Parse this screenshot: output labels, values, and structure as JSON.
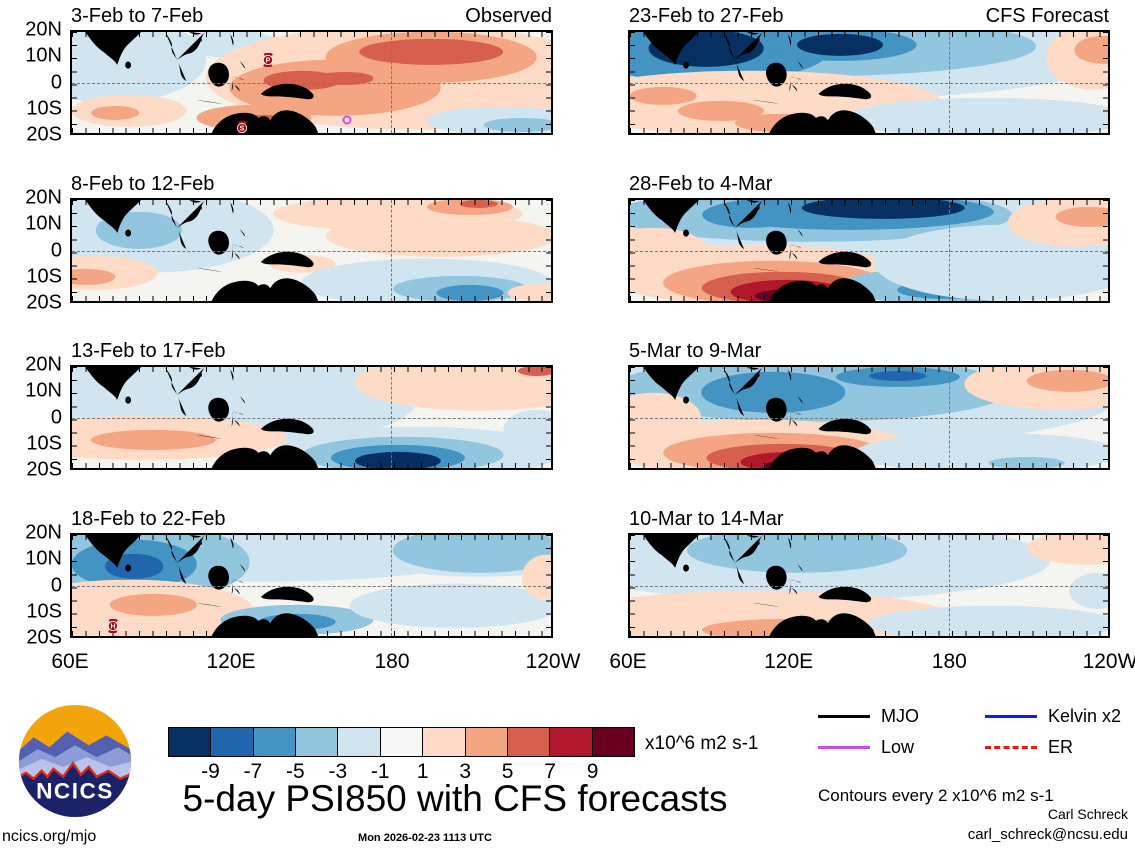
{
  "figure": {
    "title": "5-day PSI850 with CFS forecasts",
    "timestamp": "Mon 2026-02-23 1113 UTC",
    "site": "ncics.org/mjo",
    "credit_name": "Carl Schreck",
    "credit_email": "carl_schreck@ncsu.edu",
    "contours_note": "Contours every 2 x10^6 m2 s-1",
    "logo_text": "NCICS"
  },
  "chart_data": {
    "type": "heatmap",
    "title": "5-day PSI850 with CFS forecasts",
    "variable": "PSI850 anomaly",
    "units": "x10^6 m2 s-1",
    "columns": [
      "Observed",
      "CFS Forecast"
    ],
    "x_ticks": [
      "60E",
      "120E",
      "180",
      "120W"
    ],
    "y_ticks": [
      "20N",
      "10N",
      "0",
      "10S",
      "20S"
    ],
    "grid": {
      "equator_dashed": true,
      "dateline_dashed": true
    },
    "colorbar": {
      "tick_labels": [
        "-9",
        "-7",
        "-5",
        "-3",
        "-1",
        "1",
        "3",
        "5",
        "7",
        "9"
      ],
      "colors": [
        "#053061",
        "#2166ac",
        "#4393c3",
        "#92c5de",
        "#d1e5f0",
        "#f7f7f7",
        "#fddbc7",
        "#f4a582",
        "#d6604d",
        "#b2182b",
        "#67001f"
      ],
      "base_color": "#f4f4f1",
      "label": "x10^6 m2 s-1"
    },
    "legend": [
      {
        "label": "MJO",
        "color": "#000000",
        "dashed": false
      },
      {
        "label": "Kelvin x2",
        "color": "#0a1ef0",
        "dashed": false
      },
      {
        "label": "Low",
        "color": "#c44ef5",
        "dashed": false
      },
      {
        "label": "ER",
        "color": "#f51414",
        "dashed": true
      }
    ],
    "blob_format": "[x_pct, y_pct, rx_pct, ry_pct, colorbar_color_index]",
    "panels": [
      {
        "title": "3-Feb to 7-Feb",
        "corner": "Observed",
        "col": 0,
        "row": 0,
        "blobs": [
          [
            8,
            28,
            20,
            42,
            4
          ],
          [
            33,
            12,
            10,
            14,
            4
          ],
          [
            70,
            45,
            42,
            52,
            6
          ],
          [
            12,
            78,
            12,
            16,
            6
          ],
          [
            9,
            80,
            5,
            7,
            7
          ],
          [
            55,
            55,
            22,
            28,
            7
          ],
          [
            75,
            25,
            22,
            25,
            7
          ],
          [
            75,
            20,
            15,
            13,
            8
          ],
          [
            48,
            48,
            8,
            9,
            8
          ],
          [
            57,
            46,
            6,
            6,
            8
          ],
          [
            38,
            85,
            12,
            13,
            7
          ],
          [
            40,
            89,
            6,
            7,
            8
          ],
          [
            90,
            88,
            16,
            14,
            4
          ],
          [
            94,
            92,
            8,
            7,
            3
          ]
        ],
        "markers": [
          {
            "type": "storm",
            "label": "P",
            "x_pct": 41,
            "y_pct": 28
          },
          {
            "type": "storm",
            "label": "S",
            "x_pct": 35.5,
            "y_pct": 95
          },
          {
            "type": "low",
            "label": "",
            "x_pct": 57.5,
            "y_pct": 87
          }
        ]
      },
      {
        "title": "23-Feb to 27-Feb",
        "corner": "CFS Forecast",
        "col": 1,
        "row": 0,
        "blobs": [
          [
            40,
            22,
            62,
            45,
            4
          ],
          [
            35,
            14,
            50,
            30,
            3
          ],
          [
            16,
            16,
            26,
            34,
            2
          ],
          [
            16,
            16,
            12,
            18,
            0
          ],
          [
            44,
            13,
            16,
            16,
            2
          ],
          [
            44,
            13,
            9,
            11,
            0
          ],
          [
            25,
            70,
            40,
            32,
            6
          ],
          [
            7,
            63,
            7,
            9,
            7
          ],
          [
            19,
            78,
            9,
            10,
            7
          ],
          [
            31,
            90,
            9,
            9,
            7
          ],
          [
            63,
            90,
            12,
            9,
            3
          ],
          [
            75,
            85,
            30,
            20,
            4
          ],
          [
            97,
            25,
            10,
            32,
            6
          ],
          [
            99,
            18,
            6,
            14,
            7
          ]
        ],
        "markers": []
      },
      {
        "title": "8-Feb to 12-Feb",
        "corner": "",
        "col": 0,
        "row": 1,
        "blobs": [
          [
            16,
            30,
            26,
            42,
            4
          ],
          [
            14,
            30,
            9,
            18,
            3
          ],
          [
            5,
            72,
            13,
            17,
            6
          ],
          [
            3,
            76,
            6,
            8,
            7
          ],
          [
            68,
            14,
            26,
            18,
            6
          ],
          [
            83,
            7,
            9,
            8,
            7
          ],
          [
            85,
            4,
            4,
            4,
            8
          ],
          [
            77,
            36,
            24,
            20,
            6
          ],
          [
            48,
            63,
            7,
            9,
            6
          ],
          [
            74,
            82,
            26,
            24,
            4
          ],
          [
            81,
            88,
            14,
            13,
            3
          ],
          [
            83,
            92,
            7,
            8,
            2
          ],
          [
            98,
            92,
            7,
            9,
            6
          ]
        ],
        "markers": []
      },
      {
        "title": "28-Feb to 4-Mar",
        "corner": "",
        "col": 1,
        "row": 1,
        "blobs": [
          [
            42,
            25,
            60,
            45,
            4
          ],
          [
            38,
            15,
            42,
            26,
            3
          ],
          [
            46,
            12,
            30,
            18,
            2
          ],
          [
            53,
            8,
            17,
            11,
            0
          ],
          [
            25,
            15,
            10,
            13,
            2
          ],
          [
            5,
            55,
            12,
            28,
            6
          ],
          [
            26,
            74,
            32,
            30,
            6
          ],
          [
            30,
            82,
            23,
            22,
            7
          ],
          [
            32,
            87,
            17,
            16,
            8
          ],
          [
            33,
            91,
            12,
            12,
            9
          ],
          [
            34,
            95,
            8,
            7,
            10
          ],
          [
            64,
            85,
            20,
            18,
            3
          ],
          [
            66,
            89,
            10,
            9,
            2
          ],
          [
            79,
            62,
            28,
            38,
            4
          ],
          [
            93,
            22,
            14,
            24,
            6
          ],
          [
            96,
            17,
            7,
            10,
            7
          ]
        ],
        "markers": []
      },
      {
        "title": "13-Feb to 17-Feb",
        "corner": "",
        "col": 0,
        "row": 2,
        "blobs": [
          [
            12,
            22,
            22,
            34,
            4
          ],
          [
            19,
            41,
            4,
            5,
            2
          ],
          [
            42,
            32,
            30,
            42,
            4
          ],
          [
            15,
            70,
            30,
            22,
            6
          ],
          [
            17,
            72,
            13,
            10,
            7
          ],
          [
            46,
            96,
            10,
            9,
            7
          ],
          [
            48,
            98,
            5,
            5,
            8
          ],
          [
            85,
            15,
            26,
            28,
            6
          ],
          [
            97,
            4,
            4,
            5,
            8
          ],
          [
            72,
            85,
            30,
            26,
            4
          ],
          [
            69,
            87,
            21,
            18,
            3
          ],
          [
            68,
            90,
            14,
            13,
            2
          ],
          [
            68,
            93,
            9,
            9,
            0
          ],
          [
            97,
            62,
            7,
            20,
            4
          ]
        ],
        "markers": []
      },
      {
        "title": "5-Mar to 9-Mar",
        "corner": "",
        "col": 1,
        "row": 2,
        "blobs": [
          [
            42,
            30,
            60,
            48,
            4
          ],
          [
            38,
            22,
            42,
            32,
            3
          ],
          [
            30,
            25,
            15,
            20,
            2
          ],
          [
            56,
            10,
            13,
            10,
            2
          ],
          [
            56,
            9,
            6,
            5,
            1
          ],
          [
            5,
            50,
            10,
            25,
            6
          ],
          [
            27,
            80,
            32,
            28,
            6
          ],
          [
            30,
            85,
            23,
            20,
            7
          ],
          [
            32,
            90,
            16,
            14,
            8
          ],
          [
            34,
            94,
            11,
            10,
            9
          ],
          [
            35,
            98,
            7,
            6,
            10
          ],
          [
            75,
            85,
            28,
            20,
            4
          ],
          [
            83,
            95,
            8,
            6,
            3
          ],
          [
            90,
            17,
            20,
            25,
            6
          ],
          [
            92,
            14,
            9,
            11,
            7
          ]
        ],
        "markers": []
      },
      {
        "title": "18-Feb to 22-Feb",
        "corner": "",
        "col": 0,
        "row": 3,
        "blobs": [
          [
            40,
            16,
            48,
            30,
            4
          ],
          [
            15,
            27,
            22,
            38,
            3
          ],
          [
            13,
            29,
            13,
            24,
            2
          ],
          [
            13,
            31,
            6,
            12,
            1
          ],
          [
            12,
            76,
            26,
            32,
            6
          ],
          [
            17,
            69,
            9,
            11,
            7
          ],
          [
            47,
            84,
            16,
            15,
            3
          ],
          [
            47,
            86,
            8,
            8,
            2
          ],
          [
            85,
            13,
            27,
            28,
            4
          ],
          [
            85,
            15,
            18,
            22,
            3
          ],
          [
            80,
            70,
            22,
            22,
            4
          ],
          [
            99,
            42,
            5,
            22,
            6
          ]
        ],
        "markers": [
          {
            "type": "storm",
            "label": "H",
            "x_pct": 8.5,
            "y_pct": 90
          }
        ]
      },
      {
        "title": "10-Mar to 14-Mar",
        "corner": "",
        "col": 1,
        "row": 3,
        "blobs": [
          [
            36,
            25,
            52,
            40,
            4
          ],
          [
            35,
            15,
            23,
            22,
            3
          ],
          [
            27,
            85,
            42,
            30,
            6
          ],
          [
            33,
            94,
            18,
            11,
            7
          ],
          [
            76,
            88,
            26,
            18,
            4
          ],
          [
            96,
            13,
            13,
            17,
            6
          ],
          [
            98,
            55,
            6,
            18,
            4
          ]
        ],
        "markers": []
      }
    ]
  }
}
